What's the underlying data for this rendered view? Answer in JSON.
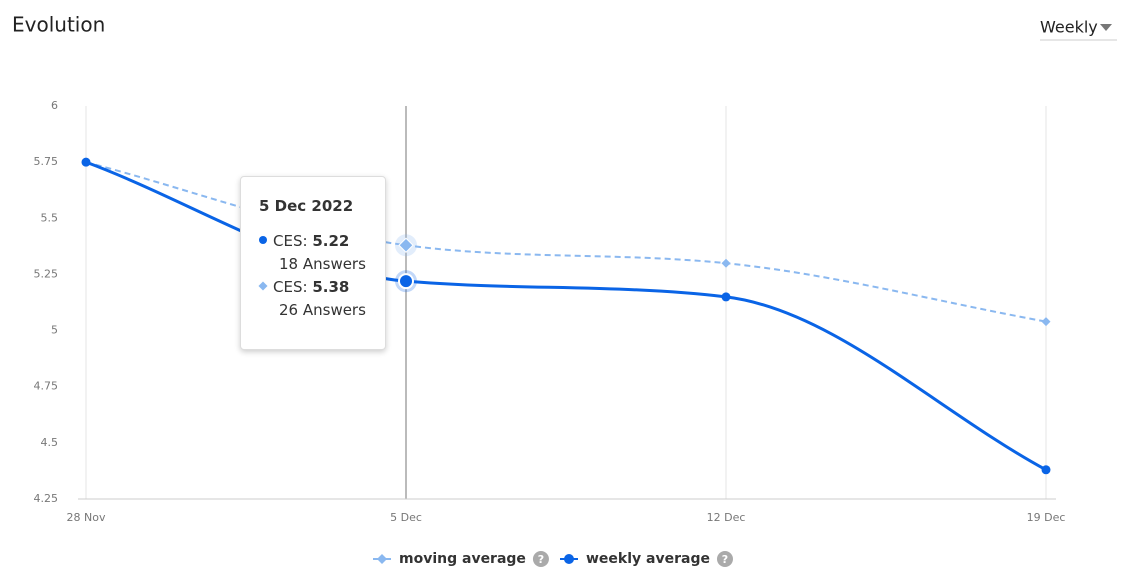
{
  "chart_data": {
    "type": "line",
    "title": "Evolution",
    "categories": [
      "28 Nov",
      "5 Dec",
      "12 Dec",
      "19 Dec"
    ],
    "series": [
      {
        "name": "moving average",
        "color": "#8ab8f0",
        "values": [
          5.75,
          5.38,
          5.3,
          5.04
        ]
      },
      {
        "name": "weekly average",
        "color": "#0a64e6",
        "values": [
          5.75,
          5.22,
          5.15,
          4.38
        ]
      }
    ],
    "ylim": [
      4.25,
      6
    ],
    "yticks": [
      4.25,
      4.5,
      4.75,
      5,
      5.25,
      5.5,
      5.75,
      6
    ],
    "grid": true
  },
  "period_selector": "Weekly",
  "legend_help": "?",
  "tooltip": {
    "date": "5 Dec 2022",
    "items": [
      {
        "label": "CES:",
        "value": 5.22,
        "answers": "18 Answers"
      },
      {
        "label": "CES:",
        "value": 5.38,
        "answers": "26 Answers"
      }
    ]
  }
}
